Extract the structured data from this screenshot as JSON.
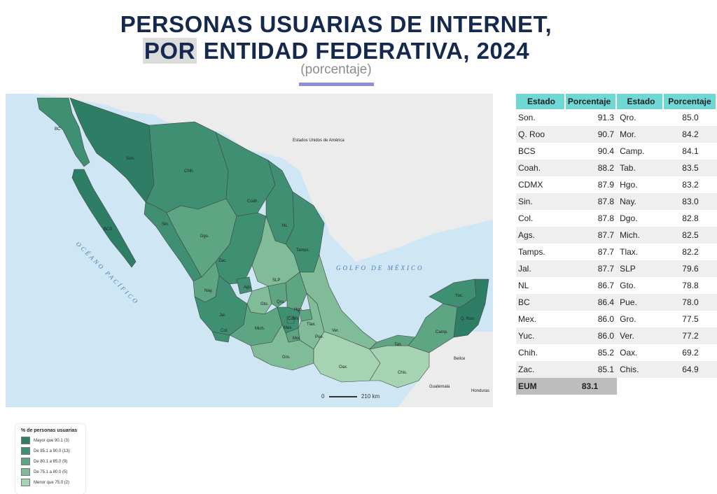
{
  "title_line1": "PERSONAS USUARIAS DE INTERNET,",
  "title_line2_hl": "POR",
  "title_line2_rest": " ENTIDAD FEDERATIVA, 2024",
  "subtitle": "(porcentaje)",
  "map": {
    "usa_label": "Estados Unidos de América",
    "gulf_label": "GOLFO DE MÉXICO",
    "pacific_label": "OCÉANO PACÍFICO",
    "belice_label": "Belice",
    "guatemala_label": "Guatemala",
    "honduras_label": "Honduras",
    "state_labels": [
      "BC",
      "Son.",
      "BCS",
      "Chih.",
      "Coah.",
      "NL",
      "Tamps.",
      "Sin.",
      "Dgo.",
      "Zac.",
      "SLP",
      "Nay.",
      "Ags.",
      "Jal.",
      "Gto.",
      "Qro.",
      "Hgo.",
      "Col.",
      "Mich.",
      "Méx.",
      "CdMx",
      "Mor.",
      "Tlax.",
      "Pue.",
      "Ver.",
      "Gro.",
      "Oax.",
      "Chis.",
      "Tab.",
      "Camp.",
      "Yuc.",
      "Q. Roo"
    ],
    "scale_label": "210 km",
    "scale_zero": "0",
    "colors": {
      "cat1": "#2e7d65",
      "cat2": "#3f8f72",
      "cat3": "#5ea583",
      "cat4": "#7fbc97",
      "cat5": "#a6d3b1",
      "ocean": "#cfe6f5",
      "land_foreign": "#ececec"
    }
  },
  "legend": {
    "title": "% de personas usuarias",
    "items": [
      {
        "label": "Mayor que 90.1 (3)",
        "color": "#2e7d65"
      },
      {
        "label": "De 85.1 a 90.0 (13)",
        "color": "#3f8f72"
      },
      {
        "label": "De 80.1 a 85.0 (9)",
        "color": "#5ea583"
      },
      {
        "label": "De 75.1 a 80.0 (5)",
        "color": "#7fbc97"
      },
      {
        "label": "Menor que 75.0 (2)",
        "color": "#a6d3b1"
      }
    ]
  },
  "table": {
    "headers": [
      "Estado",
      "Porcentaje",
      "Estado",
      "Porcentaje"
    ],
    "rows": [
      [
        "Son.",
        "91.3",
        "Qro.",
        "85.0"
      ],
      [
        "Q. Roo",
        "90.7",
        "Mor.",
        "84.2"
      ],
      [
        "BCS",
        "90.4",
        "Camp.",
        "84.1"
      ],
      [
        "Coah.",
        "88.2",
        "Tab.",
        "83.5"
      ],
      [
        "CDMX",
        "87.9",
        "Hgo.",
        "83.2"
      ],
      [
        "Sin.",
        "87.8",
        "Nay.",
        "83.0"
      ],
      [
        "Col.",
        "87.8",
        "Dgo.",
        "82.8"
      ],
      [
        "Ags.",
        "87.7",
        "Mich.",
        "82.5"
      ],
      [
        "Tamps.",
        "87.7",
        "Tlax.",
        "82.2"
      ],
      [
        "Jal.",
        "87.7",
        "SLP",
        "79.6"
      ],
      [
        "NL",
        "86.7",
        "Gto.",
        "78.8"
      ],
      [
        "BC",
        "86.4",
        "Pue.",
        "78.0"
      ],
      [
        "Mex.",
        "86.0",
        "Gro.",
        "77.5"
      ],
      [
        "Yuc.",
        "86.0",
        "Ver.",
        "77.2"
      ],
      [
        "Chih.",
        "85.2",
        "Oax.",
        "69.2"
      ],
      [
        "Zac.",
        "85.1",
        "Chis.",
        "64.9"
      ]
    ],
    "total_label": "EUM",
    "total_value": "83.1"
  }
}
